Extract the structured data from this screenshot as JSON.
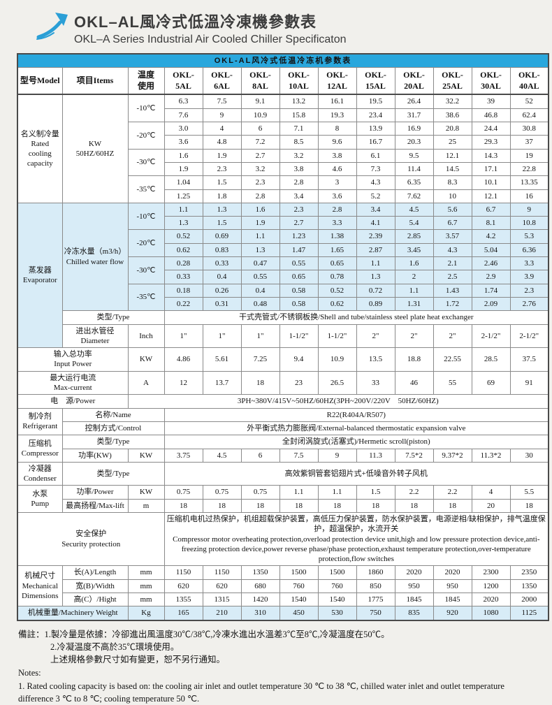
{
  "page": {
    "title": "OKL–AL風冷式低溫冷凍機參數表",
    "subtitle": "OKL–A Series Industrial Air Cooled Chiller Specificaton"
  },
  "colors": {
    "accent_blue": "#29a7dd",
    "tint_blue": "#d8ecf7",
    "page_background": "#f1f0ec"
  },
  "logo": {
    "icon": "arrow-up-right-icon"
  },
  "table": {
    "caption": "OKL-AL风冷式低温冷冻机参数表",
    "rows": [
      {
        "name": "column-header-row",
        "cellName": "column-header",
        "cls": "colhead",
        "cells": [
          {
            "t": "型号Model"
          },
          {
            "t": "项目Items"
          },
          {
            "t": "温度\n使用"
          },
          {
            "t": "OKL-\n5AL"
          },
          {
            "t": "OKL-\n6AL"
          },
          {
            "t": "OKL-\n8AL"
          },
          {
            "t": "OKL-\n10AL"
          },
          {
            "t": "OKL-\n12AL"
          },
          {
            "t": "OKL-\n15AL"
          },
          {
            "t": "OKL-\n20AL"
          },
          {
            "t": "OKL-\n25AL"
          },
          {
            "t": "OKL-\n30AL"
          },
          {
            "t": "OKL-\n40AL"
          }
        ]
      },
      {
        "cells": [
          {
            "t": "名义制冷量\nRated\ncooling\ncapacity",
            "rs": 8,
            "n": "row-label"
          },
          {
            "t": "KW\n50HZ/60HZ",
            "rs": 8,
            "n": "row-sublabel"
          },
          {
            "t": "-10℃",
            "rs": 2,
            "n": "temp-label"
          },
          "6.3",
          "7.5",
          "9.1",
          "13.2",
          "16.1",
          "19.5",
          "26.4",
          "32.2",
          "39",
          "52"
        ]
      },
      {
        "cells": [
          "7.6",
          "9",
          "10.9",
          "15.8",
          "19.3",
          "23.4",
          "31.7",
          "38.6",
          "46.8",
          "62.4"
        ]
      },
      {
        "cells": [
          {
            "t": "-20℃",
            "rs": 2,
            "n": "temp-label"
          },
          "3.0",
          "4",
          "6",
          "7.1",
          "8",
          "13.9",
          "16.9",
          "20.8",
          "24.4",
          "30.8"
        ]
      },
      {
        "cells": [
          "3.6",
          "4.8",
          "7.2",
          "8.5",
          "9.6",
          "16.7",
          "20.3",
          "25",
          "29.3",
          "37"
        ]
      },
      {
        "cells": [
          {
            "t": "-30℃",
            "rs": 2,
            "n": "temp-label"
          },
          "1.6",
          "1.9",
          "2.7",
          "3.2",
          "3.8",
          "6.1",
          "9.5",
          "12.1",
          "14.3",
          "19"
        ]
      },
      {
        "cells": [
          "1.9",
          "2.3",
          "3.2",
          "3.8",
          "4.6",
          "7.3",
          "11.4",
          "14.5",
          "17.1",
          "22.8"
        ]
      },
      {
        "cells": [
          {
            "t": "-35℃",
            "rs": 2,
            "n": "temp-label"
          },
          "1.04",
          "1.5",
          "2.3",
          "2.8",
          "3",
          "4.3",
          "6.35",
          "8.3",
          "10.1",
          "13.35"
        ]
      },
      {
        "cells": [
          "1.25",
          "1.8",
          "2.8",
          "3.4",
          "3.6",
          "5.2",
          "7.62",
          "10",
          "12.1",
          "16"
        ]
      },
      {
        "cls": "tint",
        "cells": [
          {
            "t": "蒸发器\nEvaporator",
            "rs": 10,
            "cls": "cellblue",
            "n": "row-label"
          },
          {
            "t": "冷冻水量（m3/h）\nChilled water flow",
            "rs": 8,
            "cls": "cellblue",
            "n": "row-sublabel"
          },
          {
            "t": "-10℃",
            "rs": 2,
            "n": "temp-label"
          },
          "1.1",
          "1.3",
          "1.6",
          "2.3",
          "2.8",
          "3.4",
          "4.5",
          "5.6",
          "6.7",
          "9"
        ]
      },
      {
        "cls": "tint",
        "cells": [
          "1.3",
          "1.5",
          "1.9",
          "2.7",
          "3.3",
          "4.1",
          "5.4",
          "6.7",
          "8.1",
          "10.8"
        ]
      },
      {
        "cls": "tint",
        "cells": [
          {
            "t": "-20℃",
            "rs": 2,
            "n": "temp-label"
          },
          "0.52",
          "0.69",
          "1.1",
          "1.23",
          "1.38",
          "2.39",
          "2.85",
          "3.57",
          "4.2",
          "5.3"
        ]
      },
      {
        "cls": "tint",
        "cells": [
          "0.62",
          "0.83",
          "1.3",
          "1.47",
          "1.65",
          "2.87",
          "3.45",
          "4.3",
          "5.04",
          "6.36"
        ]
      },
      {
        "cls": "tint",
        "cells": [
          {
            "t": "-30℃",
            "rs": 2,
            "n": "temp-label"
          },
          "0.28",
          "0.33",
          "0.47",
          "0.55",
          "0.65",
          "1.1",
          "1.6",
          "2.1",
          "2.46",
          "3.3"
        ]
      },
      {
        "cls": "tint",
        "cells": [
          "0.33",
          "0.4",
          "0.55",
          "0.65",
          "0.78",
          "1.3",
          "2",
          "2.5",
          "2.9",
          "3.9"
        ]
      },
      {
        "cls": "tint",
        "cells": [
          {
            "t": "-35℃",
            "rs": 2,
            "n": "temp-label"
          },
          "0.18",
          "0.26",
          "0.4",
          "0.58",
          "0.52",
          "0.72",
          "1.1",
          "1.43",
          "1.74",
          "2.3"
        ]
      },
      {
        "cls": "tint",
        "cells": [
          "0.22",
          "0.31",
          "0.48",
          "0.58",
          "0.62",
          "0.89",
          "1.31",
          "1.72",
          "2.09",
          "2.76"
        ]
      },
      {
        "cells": [
          {
            "t": "类型/Type",
            "cs": 2,
            "n": "row-sublabel"
          },
          {
            "t": "干式壳管式/不锈钢板换/Shell and tube/stainless steel plate heat exchanger",
            "cs": 10,
            "n": "merged-value"
          }
        ]
      },
      {
        "cells": [
          {
            "t": "进出水管径\nDiameter",
            "n": "row-sublabel"
          },
          {
            "t": "Inch",
            "n": "unit-label"
          },
          "1\"",
          "1\"",
          "1\"",
          "1-1/2\"",
          "1-1/2\"",
          "2\"",
          "2\"",
          "2\"",
          "2-1/2\"",
          "2-1/2\""
        ]
      },
      {
        "cells": [
          {
            "t": "输入总功率\nInput Power",
            "cs": 2,
            "n": "row-label"
          },
          {
            "t": "KW",
            "n": "unit-label"
          },
          "4.86",
          "5.61",
          "7.25",
          "9.4",
          "10.9",
          "13.5",
          "18.8",
          "22.55",
          "28.5",
          "37.5"
        ]
      },
      {
        "cells": [
          {
            "t": "最大运行电流\nMax-current",
            "cs": 2,
            "n": "row-label"
          },
          {
            "t": "A",
            "n": "unit-label"
          },
          "12",
          "13.7",
          "18",
          "23",
          "26.5",
          "33",
          "46",
          "55",
          "69",
          "91"
        ]
      },
      {
        "cells": [
          {
            "t": "电　源/Power",
            "cs": 2,
            "n": "row-label"
          },
          {
            "t": "3PH~380V/415V~50HZ/60HZ(3PH~200V/220V　50HZ/60HZ)",
            "cs": 11,
            "n": "merged-value"
          }
        ]
      },
      {
        "cells": [
          {
            "t": "制冷剂\nRefrigerant",
            "rs": 2,
            "n": "row-label"
          },
          {
            "t": "名称/Name",
            "cs": 2,
            "n": "row-sublabel"
          },
          {
            "t": "R22(R404A/R507)",
            "cs": 10,
            "n": "merged-value"
          }
        ]
      },
      {
        "cells": [
          {
            "t": "控制方式/Control",
            "cs": 2,
            "n": "row-sublabel"
          },
          {
            "t": "外平衡式热力膨胀阀/External-balanced thermostatic expansion valve",
            "cs": 10,
            "n": "merged-value"
          }
        ]
      },
      {
        "cells": [
          {
            "t": "压缩机\nCompressor",
            "rs": 2,
            "n": "row-label"
          },
          {
            "t": "类型/Type",
            "cs": 2,
            "n": "row-sublabel"
          },
          {
            "t": "全封闭涡旋式(活塞式)/Hermetic scroll(piston)",
            "cs": 10,
            "n": "merged-value"
          }
        ]
      },
      {
        "cells": [
          {
            "t": "功率(KW)",
            "n": "row-sublabel"
          },
          {
            "t": "KW",
            "n": "unit-label"
          },
          "3.75",
          "4.5",
          "6",
          "7.5",
          "9",
          "11.3",
          "7.5*2",
          "9.37*2",
          "11.3*2",
          "30"
        ]
      },
      {
        "cells": [
          {
            "t": "冷凝器\nCondenser",
            "n": "row-label"
          },
          {
            "t": "类型/Type",
            "cs": 2,
            "n": "row-sublabel"
          },
          {
            "t": "高效紫铜管套铝翅片式+低噪音外转子风机",
            "cs": 10,
            "n": "merged-value"
          }
        ]
      },
      {
        "cells": [
          {
            "t": "水泵\nPump",
            "rs": 2,
            "n": "row-label"
          },
          {
            "t": "功率/Power",
            "n": "row-sublabel"
          },
          {
            "t": "KW",
            "n": "unit-label"
          },
          "0.75",
          "0.75",
          "0.75",
          "1.1",
          "1.1",
          "1.5",
          "2.2",
          "2.2",
          "4",
          "5.5"
        ]
      },
      {
        "cells": [
          {
            "t": "最高扬程/Max-lift",
            "n": "row-sublabel"
          },
          {
            "t": "m",
            "n": "unit-label"
          },
          "18",
          "18",
          "18",
          "18",
          "18",
          "18",
          "18",
          "18",
          "20",
          "18"
        ]
      },
      {
        "cells": [
          {
            "t": "安全保护\nSecurity protection",
            "cs": 3,
            "n": "row-label"
          },
          {
            "t": "压缩机电机过热保护，机组超载保护装置，高低压力保护装置，防水保护装置，电源逆相/缺相保护，排气温度保护，超温保护，水流开关\nCompressor motor overheating protection,overload protection device unit,high and low pressure protection device,anti-freezing protection device,power reverse phase/phase protection,exhaust temperature protection,over-temperature protection,flow switches",
            "cs": 10,
            "cls": "left",
            "n": "merged-value"
          }
        ]
      },
      {
        "cells": [
          {
            "t": "机械尺寸\nMechanical\nDimensions",
            "rs": 3,
            "n": "row-label"
          },
          {
            "t": "长(A)/Length",
            "n": "row-sublabel"
          },
          {
            "t": "mm",
            "n": "unit-label"
          },
          "1150",
          "1150",
          "1350",
          "1500",
          "1500",
          "1860",
          "2020",
          "2020",
          "2300",
          "2350"
        ]
      },
      {
        "cells": [
          {
            "t": "宽(B)/Width",
            "n": "row-sublabel"
          },
          {
            "t": "mm",
            "n": "unit-label"
          },
          "620",
          "620",
          "680",
          "760",
          "760",
          "850",
          "950",
          "950",
          "1200",
          "1350"
        ]
      },
      {
        "cells": [
          {
            "t": "高(C）/Hight",
            "n": "row-sublabel"
          },
          {
            "t": "mm",
            "n": "unit-label"
          },
          "1355",
          "1315",
          "1420",
          "1540",
          "1540",
          "1775",
          "1845",
          "1845",
          "2020",
          "2000"
        ]
      },
      {
        "cls": "tint",
        "cells": [
          {
            "t": "机械重量/Machinery Weight",
            "cs": 2,
            "n": "row-label"
          },
          {
            "t": "Kg",
            "n": "unit-label"
          },
          "165",
          "210",
          "310",
          "450",
          "530",
          "750",
          "835",
          "920",
          "1080",
          "1125"
        ]
      }
    ]
  },
  "notes": {
    "zh1": "備註：1.製冷量是依據：冷卻進出風溫度30℃/38℃,冷凍水進出水溫差3℃至8℃,冷凝溫度在50℃。",
    "zh2": "2.冷凝温度不高於35℃環境使用。",
    "zh3": "上述規格參數尺寸如有變更，恕不另行通知。",
    "en_label": "Notes:",
    "en1": "1. Rated cooling capacity is based on: the cooling air inlet and outlet temperature 30 ℃ to 38 ℃, chilled water inlet and outlet temperature difference 3 ℃ to 8 ℃; cooling temperature 50 ℃."
  }
}
